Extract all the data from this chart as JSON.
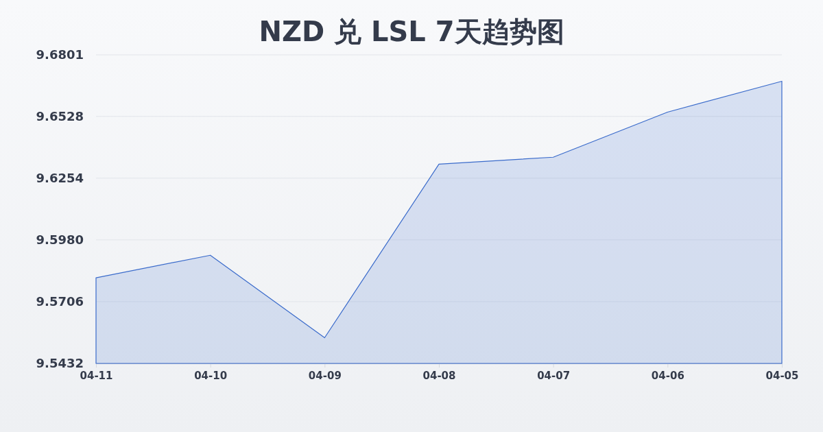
{
  "chart_data": {
    "type": "area",
    "title": "NZD 兑 LSL 7天趋势图",
    "categories": [
      "04-11",
      "04-10",
      "04-09",
      "04-08",
      "04-07",
      "04-06",
      "04-05"
    ],
    "series": [
      {
        "color": "#3a6bcb",
        "values": [
          9.5812,
          9.5912,
          9.5546,
          9.6316,
          9.6347,
          9.6547,
          9.6684
        ]
      }
    ],
    "ylim": [
      9.5432,
      9.6801
    ],
    "yticks": [
      9.5432,
      9.5706,
      {
        "value": 9.598,
        "label": "9.5980"
      },
      9.6254,
      9.6528,
      9.6801
    ],
    "grid": "y",
    "marker": "none",
    "line_style": "solid"
  }
}
